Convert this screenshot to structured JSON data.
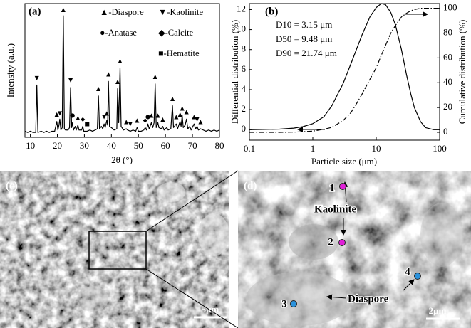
{
  "chart_data": [
    {
      "type": "line",
      "label": "(a)",
      "x_label": "2θ (°)",
      "y_label": "Intensity (a.u.)",
      "x": [
        8,
        9,
        10,
        11,
        12,
        12.4,
        12.8,
        14,
        15,
        16,
        17,
        18,
        19,
        19.8,
        20.2,
        20.6,
        20.9,
        21.3,
        21.8,
        22.2,
        22.6,
        23,
        24,
        24.5,
        24.9,
        25.3,
        25.6,
        26,
        26.6,
        27,
        27.6,
        28,
        29,
        29.4,
        29.8,
        31,
        32,
        33,
        34,
        34.8,
        35.2,
        35.6,
        36.3,
        36.8,
        37.3,
        37.7,
        38.3,
        38.6,
        38.9,
        39.3,
        40,
        41,
        42,
        42.3,
        42.7,
        43.2,
        43.6,
        44.5,
        45.5,
        46,
        47,
        48,
        49,
        49.5,
        50,
        51,
        52,
        52.5,
        53,
        53.5,
        54,
        54.8,
        55.3,
        55.8,
        56.2,
        56.6,
        57.2,
        57.6,
        58.5,
        59,
        59.5,
        60.5,
        61,
        62,
        62.6,
        63,
        64,
        64.5,
        65.4,
        65.8,
        66.2,
        66.6,
        67.3,
        67.8,
        68.3,
        69,
        69.5,
        70.6,
        71.2,
        71.7,
        72.2,
        73,
        74,
        75,
        76,
        77,
        78,
        79,
        80
      ],
      "values": [
        5,
        4,
        5,
        4,
        4,
        43,
        4,
        5,
        4,
        5,
        4,
        5,
        5,
        13,
        6,
        10,
        15,
        6,
        8,
        100,
        7,
        6,
        6,
        8,
        41,
        8,
        12,
        6,
        9,
        6,
        10,
        6,
        6,
        9,
        5,
        5,
        6,
        5,
        6,
        7,
        34,
        7,
        9,
        7,
        11,
        8,
        14,
        10,
        46,
        9,
        8,
        6,
        7,
        40,
        12,
        57,
        9,
        6,
        7,
        6,
        5,
        6,
        5,
        8,
        5,
        5,
        6,
        8,
        6,
        11,
        7,
        12,
        8,
        12,
        44,
        8,
        12,
        8,
        7,
        9,
        6,
        8,
        6,
        7,
        26,
        8,
        11,
        7,
        13,
        9,
        18,
        8,
        10,
        15,
        7,
        9,
        6,
        11,
        7,
        9,
        6,
        7,
        6,
        5,
        6,
        5,
        6,
        5,
        6
      ],
      "color": "#000000",
      "xlim": [
        8,
        80
      ],
      "xticks": [
        10,
        20,
        30,
        40,
        50,
        60,
        70,
        80
      ],
      "ylim": [
        0,
        110
      ],
      "legend": [
        "▲-Diaspore",
        "▼-Kaolinite",
        "●-Anatase",
        "◆-Calcite",
        "■-Hematite"
      ],
      "peak_markers": [
        {
          "x": 12.4,
          "y": 49,
          "symbol": "▼"
        },
        {
          "x": 19.8,
          "y": 19,
          "symbol": "▲"
        },
        {
          "x": 20.9,
          "y": 20,
          "symbol": "▼"
        },
        {
          "x": 22.2,
          "y": 105,
          "symbol": "▲"
        },
        {
          "x": 24.9,
          "y": 47,
          "symbol": "▼"
        },
        {
          "x": 25.6,
          "y": 18,
          "symbol": "●"
        },
        {
          "x": 27.6,
          "y": 16,
          "symbol": "▲"
        },
        {
          "x": 29.4,
          "y": 15,
          "symbol": "◆"
        },
        {
          "x": 31,
          "y": 11,
          "symbol": "■"
        },
        {
          "x": 35.2,
          "y": 40,
          "symbol": "▲"
        },
        {
          "x": 37.3,
          "y": 17,
          "symbol": "▼"
        },
        {
          "x": 38.3,
          "y": 20,
          "symbol": "▲"
        },
        {
          "x": 38.9,
          "y": 52,
          "symbol": "▲"
        },
        {
          "x": 42.3,
          "y": 46,
          "symbol": "▲"
        },
        {
          "x": 43.2,
          "y": 63,
          "symbol": "▲"
        },
        {
          "x": 45.5,
          "y": 13,
          "symbol": "▲"
        },
        {
          "x": 47,
          "y": 11,
          "symbol": "▼"
        },
        {
          "x": 49.5,
          "y": 14,
          "symbol": "▲"
        },
        {
          "x": 52.5,
          "y": 14,
          "symbol": "◆"
        },
        {
          "x": 53.5,
          "y": 17,
          "symbol": "●"
        },
        {
          "x": 54.8,
          "y": 18,
          "symbol": "▲"
        },
        {
          "x": 56.2,
          "y": 50,
          "symbol": "▲"
        },
        {
          "x": 57.2,
          "y": 18,
          "symbol": "▲"
        },
        {
          "x": 59,
          "y": 15,
          "symbol": "▲"
        },
        {
          "x": 62.6,
          "y": 32,
          "symbol": "▲"
        },
        {
          "x": 64,
          "y": 17,
          "symbol": "▲"
        },
        {
          "x": 65.4,
          "y": 19,
          "symbol": "▲"
        },
        {
          "x": 66.2,
          "y": 24,
          "symbol": "▲"
        },
        {
          "x": 67.8,
          "y": 21,
          "symbol": "▲"
        },
        {
          "x": 70.6,
          "y": 17,
          "symbol": "▲"
        },
        {
          "x": 71.7,
          "y": 15,
          "symbol": "▼"
        },
        {
          "x": 73,
          "y": 13,
          "symbol": "▲"
        }
      ]
    },
    {
      "type": "line",
      "label": "(b)",
      "x_label": "Particle size (μm)",
      "y_label": "Differential distribution (%)",
      "y2_label": "Cumulative distribution (%)",
      "annotations": [
        "D10 = 3.15 μm",
        "D50 = 9.48 μm",
        "D90 = 21.74 μm"
      ],
      "xscale": "log",
      "x": [
        0.1,
        0.3,
        0.5,
        0.7,
        1,
        1.5,
        2,
        3,
        4,
        5,
        6,
        8,
        10,
        12,
        14,
        17,
        20,
        25,
        30,
        35,
        40,
        50,
        60,
        80,
        100
      ],
      "series": [
        {
          "color": "#000000",
          "line_style": "solid",
          "values": [
            0,
            0.05,
            0.15,
            0.3,
            0.6,
            1.3,
            2.4,
            4.6,
            6.6,
            8.2,
            9.5,
            11.3,
            12.2,
            12.6,
            12.5,
            11.7,
            10.5,
            8,
            5.5,
            3.6,
            2.2,
            0.8,
            0.2,
            0,
            0
          ]
        },
        {
          "color": "#000000",
          "line_style": "dashdot",
          "axis": "y2",
          "values": [
            0,
            0,
            0.2,
            0.5,
            1,
            2.5,
            4,
            9.5,
            16,
            24,
            31,
            43,
            52,
            62,
            70,
            80,
            86,
            93,
            96,
            98,
            99,
            100,
            100,
            100,
            100
          ]
        }
      ],
      "xlim": [
        0.1,
        100
      ],
      "xticks": [
        0.1,
        1,
        10,
        100
      ],
      "ylim": [
        -1.05,
        12.6
      ],
      "yticks": [
        0,
        2,
        4,
        6,
        8,
        10,
        12
      ],
      "y2lim": [
        -6.3,
        103.8
      ],
      "y2ticks": [
        0,
        20,
        40,
        60,
        80,
        100
      ]
    }
  ],
  "images": [
    {
      "label": "(c)",
      "scale_bar": "5μm"
    },
    {
      "label": "(d)",
      "scale_bar": "2μm",
      "points": [
        "1",
        "2",
        "3",
        "4"
      ],
      "point_colors": [
        "#e020d8",
        "#e020d8",
        "#2b92dc",
        "#2b92dc"
      ],
      "annotations": [
        "Kaolinite",
        "Diaspore"
      ]
    }
  ]
}
